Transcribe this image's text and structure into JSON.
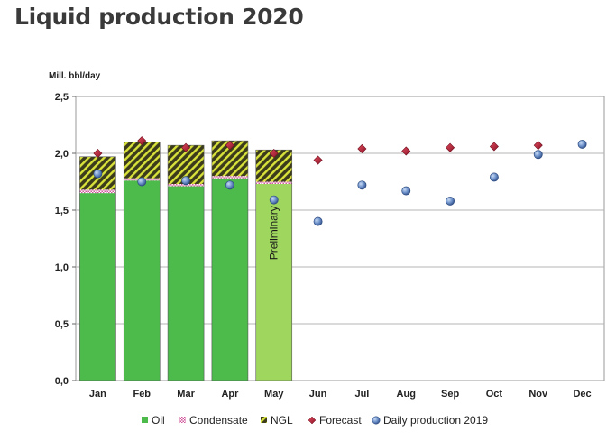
{
  "chart_data": {
    "type": "bar",
    "title": "Liquid production 2020",
    "ylabel": "Mill. bbl/day",
    "ylim": [
      0,
      2.5
    ],
    "yticks": [
      "0,0",
      "0,5",
      "1,0",
      "1,5",
      "2,0",
      "2,5"
    ],
    "ytick_values": [
      0,
      0.5,
      1.0,
      1.5,
      2.0,
      2.5
    ],
    "grid": true,
    "legend_position": "bottom",
    "categories": [
      "Jan",
      "Feb",
      "Mar",
      "Apr",
      "May",
      "Jun",
      "Jul",
      "Aug",
      "Sep",
      "Oct",
      "Nov",
      "Dec"
    ],
    "series": [
      {
        "name": "Oil",
        "kind": "stacked-bar",
        "color": "#4cbb4c",
        "preliminary_color": "#9ed65e",
        "values": [
          1.65,
          1.76,
          1.71,
          1.78,
          1.73,
          null,
          null,
          null,
          null,
          null,
          null,
          null
        ]
      },
      {
        "name": "Condensate",
        "kind": "stacked-bar",
        "color": "#e8a8c8",
        "values": [
          0.03,
          0.02,
          0.02,
          0.02,
          0.02,
          null,
          null,
          null,
          null,
          null,
          null,
          null
        ]
      },
      {
        "name": "NGL",
        "kind": "stacked-bar",
        "color": "#3c3c1c",
        "values": [
          0.29,
          0.32,
          0.34,
          0.31,
          0.28,
          null,
          null,
          null,
          null,
          null,
          null,
          null
        ]
      },
      {
        "name": "Forecast",
        "kind": "diamond",
        "color": "#b5253a",
        "values": [
          2.0,
          2.11,
          2.05,
          2.07,
          2.0,
          1.94,
          2.04,
          2.02,
          2.05,
          2.06,
          2.07,
          null
        ]
      },
      {
        "name": "Daily production 2019",
        "kind": "circle",
        "color": "#6a8fc8",
        "values": [
          1.82,
          1.75,
          1.76,
          1.72,
          1.59,
          1.4,
          1.72,
          1.67,
          1.58,
          1.79,
          1.99,
          2.08
        ]
      }
    ],
    "annotations": [
      {
        "text": "Preliminary",
        "category": "May"
      }
    ]
  }
}
